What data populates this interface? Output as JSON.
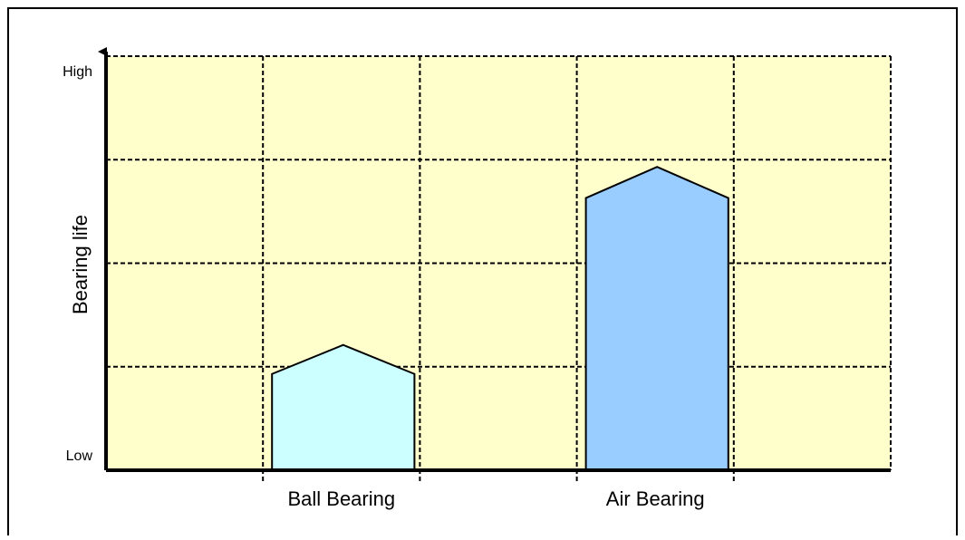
{
  "chart_data": {
    "type": "bar",
    "ylabel": "Bearing life",
    "xlabel": "",
    "y_tick_labels": {
      "low": "Low",
      "high": "High"
    },
    "ylim": [
      0,
      4
    ],
    "categories": [
      "Ball Bearing",
      "Air Bearing"
    ],
    "bars": [
      {
        "category": "Ball Bearing",
        "shoulder": 0.93,
        "peak": 1.21,
        "fill": "#ccffff"
      },
      {
        "category": "Air Bearing",
        "shoulder": 2.63,
        "peak": 2.93,
        "fill": "#99ccff"
      }
    ],
    "grid": true,
    "legend": "none",
    "colors": {
      "plot_background": "#ffffcc",
      "axis": "#000000",
      "grid": "#000000"
    }
  }
}
